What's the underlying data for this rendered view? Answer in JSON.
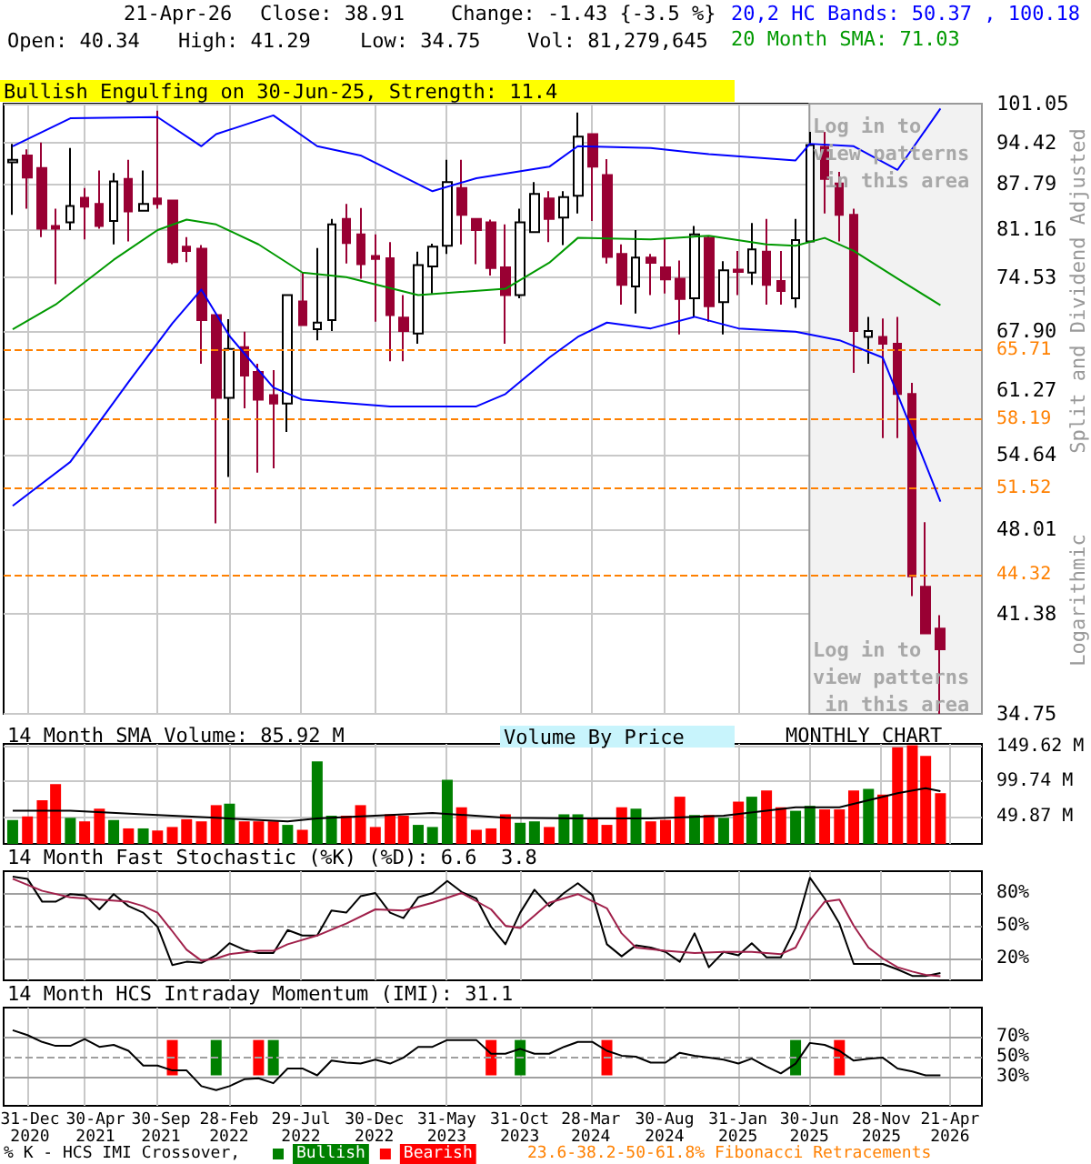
{
  "chart_data": [
    {
      "type": "candlestick",
      "ylabel": "Split and Dividend Adjusted",
      "annotations": [
        "21-Apr-26",
        "Close: 38.91",
        "Change: -1.43 {-3.5 %}",
        "Open: 40.34",
        "High: 41.29",
        "Low: 34.75",
        "Vol: 81,279,645",
        "20,2 HC Bands: 50.37 , 100.18",
        "20 Month SMA: 71.03",
        "Bullish Engulfing on 30-Jun-25, Strength: 11.4",
        "Log in to view patterns in this area",
        "Log in to view patterns in this area",
        "Logarithmic"
      ],
      "x": [
        "2020-12",
        "2021-01",
        "2021-02",
        "2021-03",
        "2021-04",
        "2021-05",
        "2021-06",
        "2021-07",
        "2021-08",
        "2021-09",
        "2021-10",
        "2021-11",
        "2021-12",
        "2022-01",
        "2022-02",
        "2022-03",
        "2022-04",
        "2022-05",
        "2022-06",
        "2022-07",
        "2022-08",
        "2022-09",
        "2022-10",
        "2022-11",
        "2022-12",
        "2023-01",
        "2023-02",
        "2023-03",
        "2023-04",
        "2023-05",
        "2023-06",
        "2023-07",
        "2023-08",
        "2023-09",
        "2023-10",
        "2023-11",
        "2023-12",
        "2024-01",
        "2024-02",
        "2024-03",
        "2024-04",
        "2024-05",
        "2024-06",
        "2024-07",
        "2024-08",
        "2024-09",
        "2024-10",
        "2024-11",
        "2024-12",
        "2025-01",
        "2025-02",
        "2025-03",
        "2025-04",
        "2025-05",
        "2025-06",
        "2025-07",
        "2025-08",
        "2025-09",
        "2025-10",
        "2025-11",
        "2025-12",
        "2026-01",
        "2026-02",
        "2026-03",
        "2026-04"
      ],
      "ohlc": [
        [
          91.2,
          94.2,
          83.2,
          91.6
        ],
        [
          92.3,
          93.3,
          84.1,
          88.8
        ],
        [
          90.3,
          94.4,
          80.0,
          81.2
        ],
        [
          81.6,
          84.1,
          73.7,
          81.2
        ],
        [
          82.1,
          93.5,
          81.0,
          84.5
        ],
        [
          85.7,
          87.2,
          79.7,
          84.4
        ],
        [
          84.8,
          89.9,
          81.2,
          81.6
        ],
        [
          82.3,
          89.5,
          79.0,
          88.2
        ],
        [
          88.6,
          91.6,
          79.4,
          83.7
        ],
        [
          83.8,
          89.9,
          83.7,
          84.8
        ],
        [
          85.6,
          99.8,
          84.1,
          84.8
        ],
        [
          85.3,
          85.3,
          76.3,
          76.6
        ],
        [
          78.7,
          80.0,
          76.6,
          78.1
        ],
        [
          78.4,
          78.9,
          64.1,
          69.2
        ],
        [
          69.8,
          69.8,
          48.5,
          60.4
        ],
        [
          60.4,
          69.3,
          52.6,
          65.8
        ],
        [
          66.0,
          67.8,
          59.3,
          62.8
        ],
        [
          63.2,
          64.1,
          53.0,
          60.2
        ],
        [
          60.7,
          63.4,
          53.4,
          59.8
        ],
        [
          59.8,
          72.3,
          56.9,
          72.3
        ],
        [
          71.5,
          75.2,
          68.6,
          68.6
        ],
        [
          68.1,
          78.5,
          66.8,
          68.9
        ],
        [
          69.2,
          82.6,
          67.9,
          81.8
        ],
        [
          82.6,
          84.8,
          76.4,
          79.2
        ],
        [
          80.4,
          84.2,
          74.4,
          76.3
        ],
        [
          77.4,
          80.4,
          69.0,
          77.0
        ],
        [
          77.1,
          79.3,
          64.4,
          69.8
        ],
        [
          69.5,
          72.3,
          64.4,
          67.9
        ],
        [
          67.6,
          78.0,
          66.4,
          76.2
        ],
        [
          76.0,
          79.1,
          72.5,
          78.7
        ],
        [
          78.8,
          91.6,
          77.7,
          88.1
        ],
        [
          87.2,
          91.6,
          79.0,
          83.2
        ],
        [
          82.6,
          82.6,
          76.3,
          81.0
        ],
        [
          82.1,
          82.5,
          74.8,
          75.8
        ],
        [
          75.9,
          81.8,
          66.4,
          72.3
        ],
        [
          72.3,
          84.1,
          71.9,
          82.1
        ],
        [
          80.7,
          88.1,
          80.7,
          86.3
        ],
        [
          85.6,
          86.7,
          79.3,
          82.6
        ],
        [
          82.8,
          86.7,
          78.9,
          85.8
        ],
        [
          86.0,
          99.5,
          83.4,
          95.4
        ],
        [
          95.8,
          95.8,
          82.3,
          90.5
        ],
        [
          89.2,
          91.7,
          76.4,
          77.3
        ],
        [
          77.7,
          79.0,
          71.1,
          73.6
        ],
        [
          73.4,
          81.0,
          70.0,
          77.2
        ],
        [
          77.2,
          77.7,
          72.3,
          76.5
        ],
        [
          75.9,
          79.8,
          72.5,
          74.3
        ],
        [
          74.4,
          76.8,
          67.5,
          71.8
        ],
        [
          71.9,
          81.6,
          69.6,
          80.4
        ],
        [
          79.9,
          80.2,
          69.0,
          70.9
        ],
        [
          71.4,
          76.7,
          67.5,
          75.5
        ],
        [
          75.6,
          78.1,
          72.3,
          75.3
        ],
        [
          75.2,
          82.0,
          73.6,
          78.3
        ],
        [
          78.0,
          82.6,
          71.1,
          73.6
        ],
        [
          74.1,
          78.1,
          71.1,
          72.8
        ],
        [
          71.9,
          82.6,
          70.7,
          79.6
        ],
        [
          79.4,
          96.2,
          79.3,
          94.0
        ],
        [
          93.7,
          96.2,
          83.4,
          88.6
        ],
        [
          87.9,
          89.7,
          79.4,
          83.2
        ],
        [
          83.2,
          84.1,
          63.1,
          67.9
        ],
        [
          67.2,
          69.6,
          64.1,
          67.9
        ],
        [
          67.2,
          69.4,
          56.3,
          66.4
        ],
        [
          66.4,
          69.6,
          56.3,
          60.8
        ],
        [
          60.8,
          62.0,
          42.7,
          44.2
        ],
        [
          43.4,
          48.6,
          40.0,
          40.0
        ],
        [
          40.34,
          41.29,
          34.75,
          38.91
        ]
      ],
      "series": [
        {
          "type": "line",
          "color": "#0000ff",
          "x": [
            "2020-12",
            "2021-04",
            "2021-10",
            "2022-01",
            "2022-02",
            "2022-06",
            "2022-09",
            "2022-12",
            "2023-05",
            "2023-08",
            "2024-01",
            "2024-03",
            "2024-08",
            "2024-12",
            "2025-06",
            "2025-07",
            "2025-10",
            "2026-01",
            "2026-04"
          ],
          "values": [
            93.8,
            98.5,
            98.7,
            93.8,
            95.8,
            99.0,
            93.8,
            92.3,
            86.7,
            88.7,
            90.5,
            93.8,
            93.5,
            92.5,
            91.5,
            94.2,
            93.8,
            90.0,
            100.18
          ]
        },
        {
          "type": "line",
          "color": "#0000ff",
          "x": [
            "2020-12",
            "2021-04",
            "2021-08",
            "2021-11",
            "2022-01",
            "2022-03",
            "2022-06",
            "2022-08",
            "2023-02",
            "2023-08",
            "2023-10",
            "2024-01",
            "2024-03",
            "2024-05",
            "2024-08",
            "2024-11",
            "2025-02",
            "2025-06",
            "2025-09",
            "2025-12",
            "2026-02",
            "2026-04"
          ],
          "values": [
            50.0,
            54.0,
            62.1,
            68.8,
            73.0,
            67.3,
            61.5,
            60.2,
            59.5,
            59.5,
            60.8,
            64.8,
            67.2,
            68.9,
            68.2,
            69.6,
            68.2,
            67.8,
            66.8,
            64.8,
            57.0,
            50.37
          ]
        },
        {
          "type": "line",
          "color": "#009900",
          "x": [
            "2020-12",
            "2021-03",
            "2021-07",
            "2021-10",
            "2021-12",
            "2022-02",
            "2022-05",
            "2022-08",
            "2022-11",
            "2023-04",
            "2023-10",
            "2024-01",
            "2024-03",
            "2024-08",
            "2024-12",
            "2025-04",
            "2025-06",
            "2025-08",
            "2025-10",
            "2026-01",
            "2026-04"
          ],
          "values": [
            68.1,
            71.1,
            76.9,
            81.0,
            82.5,
            81.8,
            79.0,
            75.2,
            74.6,
            72.3,
            73.1,
            76.5,
            79.9,
            79.7,
            80.2,
            79.0,
            78.8,
            79.9,
            78.1,
            74.4,
            71.03
          ]
        }
      ],
      "log": true,
      "ylim": [
        34.75,
        101.05
      ],
      "yticks": [
        34.75,
        41.38,
        48.01,
        54.64,
        61.27,
        {
          "value": 67.9,
          "label": "67.90"
        },
        74.53,
        81.16,
        87.79,
        94.42,
        101.05
      ],
      "xticks": [
        "2020-12-31",
        "2021-04-30",
        "2021-09-30",
        "2022-02-28",
        "2022-07-29",
        "2022-12-30",
        "2023-05-31",
        "2023-10-31",
        "2024-03-28",
        "2024-08-30",
        "2025-01-31",
        "2025-06-30",
        "2025-11-28",
        "2026-04-21"
      ],
      "xlim": [
        "2020-11-12",
        "2026-06-27"
      ],
      "tick_labels": "y",
      "grid": true,
      "marker": "none",
      "ref_lines": [
        {
          "axis": "y",
          "value": 65.71,
          "label": "65.71",
          "color": "#ff8000",
          "line_style": "dashed"
        },
        {
          "axis": "y",
          "value": 58.19,
          "label": "58.19",
          "color": "#ff8000",
          "line_style": "dashed"
        },
        {
          "axis": "y",
          "value": 51.52,
          "label": "51.52",
          "color": "#ff8000",
          "line_style": "dashed"
        },
        {
          "axis": "y",
          "value": 44.32,
          "label": "44.32",
          "color": "#ff8000",
          "line_style": "dashed"
        }
      ],
      "bands": [
        {
          "axis": "x",
          "from": "2025-06-30",
          "to": "2026-06-27",
          "color": "#f2f2f2"
        }
      ]
    },
    {
      "type": "bar",
      "title": "14 Month SMA Volume: 85.92 M",
      "annotations": [
        "Volume By Price",
        "MONTHLY CHART"
      ],
      "x": [
        "2020-12",
        "2021-01",
        "2021-02",
        "2021-03",
        "2021-04",
        "2021-05",
        "2021-06",
        "2021-07",
        "2021-08",
        "2021-09",
        "2021-10",
        "2021-11",
        "2021-12",
        "2022-01",
        "2022-02",
        "2022-03",
        "2022-04",
        "2022-05",
        "2022-06",
        "2022-07",
        "2022-08",
        "2022-09",
        "2022-10",
        "2022-11",
        "2022-12",
        "2023-01",
        "2023-02",
        "2023-03",
        "2023-04",
        "2023-05",
        "2023-06",
        "2023-07",
        "2023-08",
        "2023-09",
        "2023-10",
        "2023-11",
        "2023-12",
        "2024-01",
        "2024-02",
        "2024-03",
        "2024-04",
        "2024-05",
        "2024-06",
        "2024-07",
        "2024-08",
        "2024-09",
        "2024-10",
        "2024-11",
        "2024-12",
        "2025-01",
        "2025-02",
        "2025-03",
        "2025-04",
        "2025-05",
        "2025-06",
        "2025-07",
        "2025-08",
        "2025-09",
        "2025-10",
        "2025-11",
        "2025-12",
        "2026-01",
        "2026-02",
        "2026-03",
        "2026-04"
      ],
      "series": [
        {
          "type": "bar",
          "colors": [
            "#008000",
            "#ff0000",
            "#ff0000",
            "#ff0000",
            "#008000",
            "#ff0000",
            "#ff0000",
            "#008000",
            "#ff0000",
            "#008000",
            "#ff0000",
            "#ff0000",
            "#ff0000",
            "#ff0000",
            "#ff0000",
            "#008000",
            "#ff0000",
            "#ff0000",
            "#ff0000",
            "#008000",
            "#ff0000",
            "#008000",
            "#008000",
            "#ff0000",
            "#ff0000",
            "#ff0000",
            "#ff0000",
            "#ff0000",
            "#008000",
            "#008000",
            "#008000",
            "#ff0000",
            "#ff0000",
            "#ff0000",
            "#ff0000",
            "#008000",
            "#008000",
            "#ff0000",
            "#008000",
            "#008000",
            "#ff0000",
            "#ff0000",
            "#ff0000",
            "#008000",
            "#ff0000",
            "#ff0000",
            "#ff0000",
            "#008000",
            "#ff0000",
            "#008000",
            "#ff0000",
            "#008000",
            "#ff0000",
            "#ff0000",
            "#008000",
            "#008000",
            "#ff0000",
            "#ff0000",
            "#ff0000",
            "#008000",
            "#ff0000",
            "#ff0000",
            "#ff0000",
            "#ff0000",
            "#ff0000"
          ],
          "values": [
            45,
            50,
            73,
            96,
            48,
            43,
            61,
            45,
            33,
            33,
            30,
            35,
            46,
            43,
            66,
            68,
            43,
            43,
            43,
            38,
            31,
            128,
            51,
            51,
            66,
            35,
            53,
            51,
            38,
            35,
            102,
            63,
            31,
            33,
            53,
            41,
            43,
            35,
            53,
            53,
            46,
            38,
            63,
            61,
            43,
            45,
            78,
            52,
            52,
            48,
            71,
            78,
            87,
            63,
            58,
            65,
            60,
            60,
            87,
            89,
            81,
            148,
            151,
            136,
            83
          ]
        },
        {
          "type": "line",
          "color": "#000000",
          "x": [
            "2020-12",
            "2021-04",
            "2021-09",
            "2022-02",
            "2022-07",
            "2022-09",
            "2023-05",
            "2023-10",
            "2024-03",
            "2024-08",
            "2025-01",
            "2025-06",
            "2025-09",
            "2025-11",
            "2026-01",
            "2026-03",
            "2026-04"
          ],
          "values": [
            58,
            58,
            53,
            48,
            43,
            47,
            55,
            48,
            47,
            47,
            51,
            63,
            63,
            73,
            83,
            90,
            85.92
          ]
        }
      ],
      "ylim": [
        11,
        153
      ],
      "yticks": [
        {
          "value": 49.87,
          "label": "49.87 M"
        },
        {
          "value": 99.74,
          "label": "99.74 M"
        },
        {
          "value": 149.62,
          "label": "149.62 M"
        }
      ],
      "xticks": [
        "2020-12-31",
        "2021-04-30",
        "2021-09-30",
        "2022-02-28",
        "2022-07-29",
        "2022-12-30",
        "2023-05-31",
        "2023-10-31",
        "2024-03-28",
        "2024-08-30",
        "2025-01-31",
        "2025-06-30",
        "2025-11-28",
        "2026-04-21"
      ],
      "xlim": [
        "2020-11-12",
        "2026-06-27"
      ],
      "tick_labels": "y",
      "grid": true,
      "marker": "none"
    },
    {
      "type": "line",
      "title": "14 Month Fast Stochastic (%K) (%D): 6.6  3.8",
      "x": [
        "2020-12",
        "2021-01",
        "2021-02",
        "2021-03",
        "2021-04",
        "2021-05",
        "2021-06",
        "2021-07",
        "2021-08",
        "2021-09",
        "2021-10",
        "2021-11",
        "2021-12",
        "2022-01",
        "2022-02",
        "2022-03",
        "2022-04",
        "2022-05",
        "2022-06",
        "2022-07",
        "2022-08",
        "2022-09",
        "2022-10",
        "2022-11",
        "2022-12",
        "2023-01",
        "2023-02",
        "2023-03",
        "2023-04",
        "2023-05",
        "2023-06",
        "2023-07",
        "2023-08",
        "2023-09",
        "2023-10",
        "2023-11",
        "2023-12",
        "2024-01",
        "2024-02",
        "2024-03",
        "2024-04",
        "2024-05",
        "2024-06",
        "2024-07",
        "2024-08",
        "2024-09",
        "2024-10",
        "2024-11",
        "2024-12",
        "2025-01",
        "2025-02",
        "2025-03",
        "2025-04",
        "2025-05",
        "2025-06",
        "2025-07",
        "2025-08",
        "2025-09",
        "2025-10",
        "2025-11",
        "2025-12",
        "2026-01",
        "2026-02",
        "2026-03",
        "2026-04"
      ],
      "series": [
        {
          "type": "line",
          "color": "#000000",
          "values": [
            95,
            93,
            72,
            72,
            79,
            78,
            65,
            79,
            68,
            62,
            49,
            14,
            17,
            16,
            23,
            34,
            28,
            25,
            25,
            46,
            41,
            41,
            64,
            62,
            77,
            80,
            62,
            57,
            76,
            80,
            91,
            81,
            75,
            49,
            33,
            62,
            83,
            68,
            80,
            89,
            78,
            33,
            22,
            32,
            30,
            26,
            17,
            43,
            12,
            26,
            23,
            34,
            21,
            21,
            48,
            94,
            75,
            52,
            15,
            15,
            15,
            10,
            4,
            4,
            6.6
          ]
        },
        {
          "type": "line",
          "color": "#a0204a",
          "x": [
            "2020-12",
            "2021-02",
            "2021-04",
            "2021-06",
            "2021-08",
            "2021-09",
            "2021-10",
            "2021-11",
            "2021-12",
            "2022-01",
            "2022-02",
            "2022-03",
            "2022-05",
            "2022-06",
            "2022-07",
            "2022-09",
            "2022-11",
            "2023-01",
            "2023-03",
            "2023-05",
            "2023-07",
            "2023-09",
            "2023-10",
            "2023-11",
            "2024-01",
            "2024-03",
            "2024-05",
            "2024-06",
            "2024-07",
            "2024-09",
            "2024-11",
            "2025-01",
            "2025-03",
            "2025-05",
            "2025-06",
            "2025-07",
            "2025-08",
            "2025-09",
            "2025-10",
            "2025-11",
            "2025-12",
            "2026-01",
            "2026-02",
            "2026-03",
            "2026-04"
          ],
          "values": [
            93,
            82,
            76,
            74,
            72,
            68,
            62,
            45,
            28,
            18,
            20,
            24,
            27,
            27,
            33,
            41,
            52,
            65,
            64,
            71,
            80,
            65,
            50,
            48,
            71,
            79,
            66,
            43,
            30,
            27,
            25,
            26,
            26,
            24,
            30,
            55,
            72,
            74,
            50,
            30,
            20,
            12,
            8,
            5,
            3.8
          ]
        }
      ],
      "ylim": [
        0,
        100
      ],
      "yticks": [
        {
          "value": 20,
          "label": "20%"
        },
        {
          "value": 50,
          "label": "50%"
        },
        {
          "value": 80,
          "label": "80%"
        }
      ],
      "xticks": [
        "2020-12-31",
        "2021-04-30",
        "2021-09-30",
        "2022-02-28",
        "2022-07-29",
        "2022-12-30",
        "2023-05-31",
        "2023-10-31",
        "2024-03-28",
        "2024-08-30",
        "2025-01-31",
        "2025-06-30",
        "2025-11-28",
        "2026-04-21"
      ],
      "xlim": [
        "2020-11-12",
        "2026-06-27"
      ],
      "tick_labels": "y",
      "grid": "x",
      "marker": "none",
      "ref_lines": [
        {
          "axis": "y",
          "value": 80,
          "color": "#a0a0a0",
          "line_style": "solid"
        },
        {
          "axis": "y",
          "value": 50,
          "color": "#a0a0a0",
          "line_style": "dashed"
        },
        {
          "axis": "y",
          "value": 20,
          "color": "#a0a0a0",
          "line_style": "solid"
        }
      ]
    },
    {
      "type": "line",
      "title": "14 Month HCS Intraday Momentum (IMI): 31.1",
      "legend_title": "% K - HCS IMI Crossover,",
      "annotations": [
        "23.6-38.2-50-61.8% Fibonacci Retracements"
      ],
      "x": [
        "2020-12",
        "2021-01",
        "2021-02",
        "2021-03",
        "2021-04",
        "2021-05",
        "2021-06",
        "2021-07",
        "2021-08",
        "2021-09",
        "2021-10",
        "2021-11",
        "2021-12",
        "2022-01",
        "2022-02",
        "2022-03",
        "2022-04",
        "2022-05",
        "2022-06",
        "2022-07",
        "2022-08",
        "2022-09",
        "2022-10",
        "2022-11",
        "2022-12",
        "2023-01",
        "2023-02",
        "2023-03",
        "2023-04",
        "2023-05",
        "2023-06",
        "2023-07",
        "2023-08",
        "2023-09",
        "2023-10",
        "2023-11",
        "2023-12",
        "2024-01",
        "2024-02",
        "2024-03",
        "2024-04",
        "2024-05",
        "2024-06",
        "2024-07",
        "2024-08",
        "2024-09",
        "2024-10",
        "2024-11",
        "2024-12",
        "2025-01",
        "2025-02",
        "2025-03",
        "2025-04",
        "2025-05",
        "2025-06",
        "2025-07",
        "2025-08",
        "2025-09",
        "2025-10",
        "2025-11",
        "2025-12",
        "2026-01",
        "2026-02",
        "2026-03",
        "2026-04"
      ],
      "series": [
        {
          "type": "line",
          "color": "#000000",
          "values": [
            77,
            72,
            65,
            61,
            61,
            68,
            60,
            62,
            56,
            41,
            41,
            36,
            36,
            20,
            16,
            20,
            27,
            28,
            23,
            38,
            38,
            31,
            46,
            44,
            43,
            47,
            43,
            49,
            60,
            60,
            67,
            67,
            67,
            53,
            53,
            58,
            53,
            53,
            60,
            65,
            65,
            56,
            51,
            50,
            44,
            44,
            54,
            51,
            49,
            47,
            43,
            48,
            40,
            33,
            43,
            64,
            62,
            56,
            46,
            48,
            49,
            38,
            35,
            31,
            31.1
          ]
        },
        {
          "type": "bar",
          "name": "Bullish",
          "color": "#008000",
          "x": [
            "2022-02",
            "2022-06",
            "2023-11",
            "2025-06"
          ],
          "base": [
            31,
            31,
            31,
            31
          ],
          "values": [
            36,
            36,
            36,
            36
          ]
        },
        {
          "type": "bar",
          "name": "Bearish",
          "color": "#ff0000",
          "x": [
            "2021-11",
            "2022-05",
            "2023-09",
            "2024-05",
            "2025-09"
          ],
          "base": [
            31,
            31,
            31,
            31,
            31
          ],
          "values": [
            36,
            36,
            36,
            36,
            36
          ]
        }
      ],
      "ylim": [
        0,
        100
      ],
      "yticks": [
        {
          "value": 30,
          "label": "30%"
        },
        {
          "value": 50,
          "label": "50%"
        },
        {
          "value": 70,
          "label": "70%"
        }
      ],
      "xticks": [
        {
          "value": "2020-12-31",
          "label": "31-Dec\n2020"
        },
        {
          "value": "2021-04-30",
          "label": "30-Apr\n2021"
        },
        {
          "value": "2021-09-30",
          "label": "30-Sep\n2021"
        },
        {
          "value": "2022-02-28",
          "label": "28-Feb\n2022"
        },
        {
          "value": "2022-07-29",
          "label": "29-Jul\n2022"
        },
        {
          "value": "2022-12-30",
          "label": "30-Dec\n2022"
        },
        {
          "value": "2023-05-31",
          "label": "31-May\n2023"
        },
        {
          "value": "2023-10-31",
          "label": "31-Oct\n2023"
        },
        {
          "value": "2024-03-28",
          "label": "28-Mar\n2024"
        },
        {
          "value": "2024-08-30",
          "label": "30-Aug\n2024"
        },
        {
          "value": "2025-01-31",
          "label": "31-Jan\n2025"
        },
        {
          "value": "2025-06-30",
          "label": "30-Jun\n2025"
        },
        {
          "value": "2025-11-28",
          "label": "28-Nov\n2025"
        },
        {
          "value": "2026-04-21",
          "label": "21-Apr\n2026"
        }
      ],
      "xlim": [
        "2020-11-12",
        "2026-06-27"
      ],
      "grid": "x",
      "marker": "none",
      "legend": "bottom",
      "ref_lines": [
        {
          "axis": "y",
          "value": 70,
          "color": "#a0a0a0",
          "line_style": "solid"
        },
        {
          "axis": "y",
          "value": 50,
          "color": "#a0a0a0",
          "line_style": "dashed"
        },
        {
          "axis": "y",
          "value": 30,
          "color": "#a0a0a0",
          "line_style": "solid"
        }
      ]
    }
  ]
}
